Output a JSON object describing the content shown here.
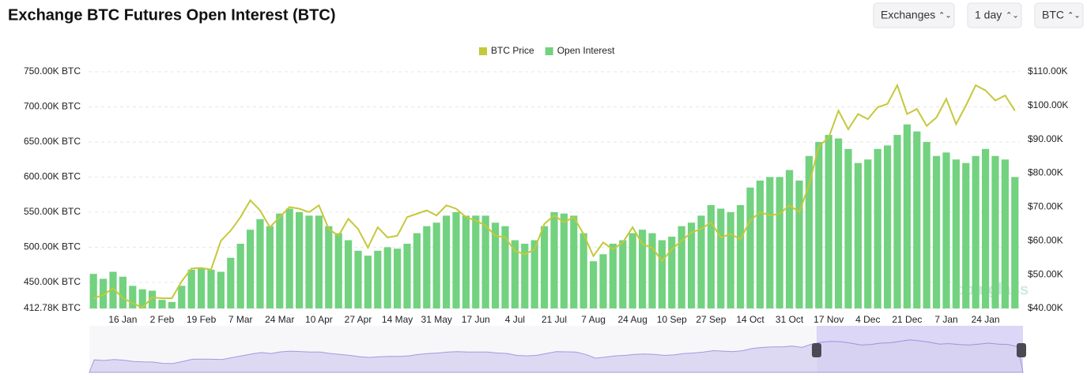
{
  "chart_data": {
    "type": "bar",
    "title": "Exchange BTC Futures Open Interest (BTC)",
    "controls": [
      "Exchanges",
      "1 day",
      "BTC"
    ],
    "watermark": "coinglass",
    "categories": [
      null,
      null,
      null,
      "16 Jan",
      null,
      null,
      null,
      "2 Feb",
      null,
      null,
      null,
      "19 Feb",
      null,
      null,
      null,
      "7 Mar",
      null,
      null,
      null,
      "24 Mar",
      null,
      null,
      null,
      "10 Apr",
      null,
      null,
      null,
      "27 Apr",
      null,
      null,
      null,
      "14 May",
      null,
      null,
      null,
      "31 May",
      null,
      null,
      null,
      "17 Jun",
      null,
      null,
      null,
      "4 Jul",
      null,
      null,
      null,
      "21 Jul",
      null,
      null,
      null,
      "7 Aug",
      null,
      null,
      null,
      "24 Aug",
      null,
      null,
      null,
      "10 Sep",
      null,
      null,
      null,
      "27 Sep",
      null,
      null,
      null,
      "14 Oct",
      null,
      null,
      null,
      "31 Oct",
      null,
      null,
      null,
      "17 Nov",
      null,
      null,
      null,
      "4 Dec",
      null,
      null,
      null,
      "21 Dec",
      null,
      null,
      null,
      "7 Jan",
      null,
      null,
      null,
      "24 Jan",
      null,
      null,
      null
    ],
    "series": [
      {
        "name": "BTC Price",
        "type": "line",
        "axis": "y2",
        "color": "#c5c83a",
        "values": [
          43000,
          44000,
          46000,
          43000,
          41600,
          40200,
          43300,
          43000,
          43000,
          48000,
          51800,
          52000,
          51500,
          60000,
          63000,
          67000,
          72000,
          69000,
          64000,
          67000,
          70000,
          69500,
          68500,
          70500,
          63500,
          61500,
          66500,
          63500,
          58000,
          64000,
          61000,
          61500,
          67000,
          68000,
          69000,
          67500,
          70500,
          69500,
          67000,
          66000,
          64500,
          61500,
          61000,
          57000,
          56000,
          57500,
          65000,
          67500,
          65500,
          67000,
          62000,
          55500,
          59500,
          57500,
          59500,
          64000,
          59000,
          58000,
          54000,
          57500,
          60000,
          62500,
          63500,
          65500,
          61000,
          62000,
          60500,
          66000,
          68500,
          67500,
          68000,
          70500,
          68500,
          76500,
          88000,
          90500,
          98500,
          93000,
          97500,
          96000,
          99500,
          100500,
          106000,
          97500,
          99000,
          94000,
          96500,
          102000,
          94500,
          100000,
          106000,
          104500,
          101500,
          103000,
          98500
        ]
      },
      {
        "name": "Open Interest",
        "type": "bar",
        "color": "#72d27f",
        "values": [
          462000,
          455000,
          465000,
          458000,
          445000,
          440000,
          438000,
          425000,
          422000,
          445000,
          468000,
          470000,
          468000,
          465000,
          485000,
          505000,
          525000,
          540000,
          530000,
          548000,
          555000,
          550000,
          545000,
          545000,
          530000,
          520000,
          510000,
          495000,
          488000,
          495000,
          500000,
          498000,
          505000,
          520000,
          530000,
          535000,
          545000,
          550000,
          545000,
          545000,
          545000,
          535000,
          530000,
          510000,
          505000,
          510000,
          530000,
          550000,
          548000,
          545000,
          520000,
          480000,
          490000,
          505000,
          510000,
          520000,
          525000,
          520000,
          510000,
          515000,
          530000,
          535000,
          545000,
          560000,
          555000,
          550000,
          560000,
          585000,
          595000,
          600000,
          600000,
          610000,
          595000,
          630000,
          650000,
          660000,
          655000,
          640000,
          620000,
          625000,
          640000,
          645000,
          660000,
          675000,
          665000,
          650000,
          630000,
          635000,
          625000,
          620000,
          630000,
          640000,
          630000,
          625000,
          600000
        ]
      }
    ],
    "ylim": [
      412780,
      750000
    ],
    "yticks": [
      {
        "value": 412780,
        "label": "412.78K BTC"
      },
      {
        "value": 450000,
        "label": "450.00K BTC"
      },
      {
        "value": 500000,
        "label": "500.00K BTC"
      },
      {
        "value": 550000,
        "label": "550.00K BTC"
      },
      {
        "value": 600000,
        "label": "600.00K BTC"
      },
      {
        "value": 650000,
        "label": "650.00K BTC"
      },
      {
        "value": 700000,
        "label": "700.00K BTC"
      },
      {
        "value": 750000,
        "label": "750.00K BTC"
      }
    ],
    "y2lim": [
      40000,
      110000
    ],
    "y2ticks": [
      {
        "value": 40000,
        "label": "$40.00K"
      },
      {
        "value": 50000,
        "label": "$50.00K"
      },
      {
        "value": 60000,
        "label": "$60.00K"
      },
      {
        "value": 70000,
        "label": "$70.00K"
      },
      {
        "value": 80000,
        "label": "$80.00K"
      },
      {
        "value": 90000,
        "label": "$90.00K"
      },
      {
        "value": 100000,
        "label": "$100.00K"
      },
      {
        "value": 110000,
        "label": "$110.00K"
      }
    ],
    "grid": true,
    "legend": "top"
  }
}
